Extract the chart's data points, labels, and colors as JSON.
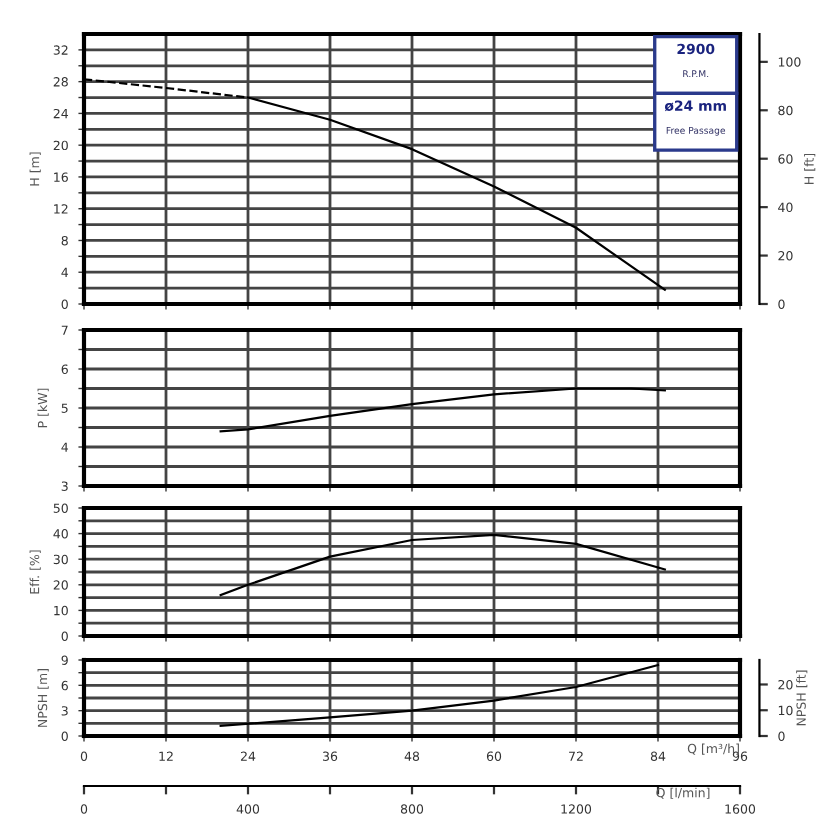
{
  "chart_data": [
    {
      "type": "line",
      "ylabel": "H [m]",
      "y2label": "H [ft]",
      "xlim": [
        0,
        96
      ],
      "xticks": [
        0,
        12,
        24,
        36,
        48,
        60,
        72,
        84,
        96
      ],
      "ylim": [
        0,
        34
      ],
      "yticks": [
        0,
        {
          "value": 2,
          "label": null
        },
        4,
        {
          "value": 6,
          "label": null
        },
        8,
        {
          "value": 10,
          "label": null
        },
        12,
        {
          "value": 14,
          "label": null
        },
        16,
        {
          "value": 18,
          "label": null
        },
        20,
        {
          "value": 22,
          "label": null
        },
        24,
        {
          "value": 26,
          "label": null
        },
        28,
        {
          "value": 30,
          "label": null
        },
        32
      ],
      "y2lim": [
        0,
        111.5
      ],
      "y2ticks": [
        0,
        20,
        40,
        60,
        80,
        100
      ],
      "grid": true,
      "tick_labels": "y",
      "annotations": [
        "2900",
        "R.P.M.",
        "ø24 mm",
        "Free Passage"
      ],
      "series": [
        {
          "color": "#000000",
          "line_style": "dashed",
          "x": [
            0,
            12,
            24
          ],
          "values": [
            28.3,
            27.2,
            26
          ]
        },
        {
          "color": "#000000",
          "line_style": "solid",
          "x": [
            24,
            36,
            48,
            60,
            72,
            78,
            85
          ],
          "values": [
            26,
            23.2,
            19.5,
            14.8,
            9.6,
            6,
            1.8
          ]
        }
      ]
    },
    {
      "type": "line",
      "ylabel": "P [kW]",
      "xlim": [
        0,
        96
      ],
      "xticks": [
        0,
        12,
        24,
        36,
        48,
        60,
        72,
        84,
        96
      ],
      "ylim": [
        3,
        7
      ],
      "yticks": [
        3,
        {
          "value": 3.5,
          "label": null
        },
        4,
        {
          "value": 4.5,
          "label": null
        },
        5,
        {
          "value": 5.5,
          "label": null
        },
        6,
        {
          "value": 6.5,
          "label": null
        },
        7
      ],
      "grid": true,
      "tick_labels": "y",
      "series": [
        {
          "color": "#000000",
          "x": [
            20,
            24,
            36,
            48,
            60,
            72,
            80,
            85
          ],
          "values": [
            4.4,
            4.45,
            4.8,
            5.1,
            5.35,
            5.5,
            5.5,
            5.45
          ]
        }
      ]
    },
    {
      "type": "line",
      "ylabel": "Eff. [%]",
      "xlim": [
        0,
        96
      ],
      "xticks": [
        0,
        12,
        24,
        36,
        48,
        60,
        72,
        84,
        96
      ],
      "ylim": [
        0,
        50
      ],
      "yticks": [
        0,
        {
          "value": 5,
          "label": null
        },
        10,
        {
          "value": 15,
          "label": null
        },
        20,
        {
          "value": 25,
          "label": null
        },
        30,
        {
          "value": 35,
          "label": null
        },
        40,
        {
          "value": 45,
          "label": null
        },
        50
      ],
      "grid": true,
      "tick_labels": "y",
      "series": [
        {
          "color": "#000000",
          "x": [
            20,
            24,
            36,
            48,
            60,
            72,
            85
          ],
          "values": [
            16,
            20,
            31,
            37.5,
            39.5,
            36,
            26
          ]
        }
      ]
    },
    {
      "type": "line",
      "ylabel": "NPSH [m]",
      "y2label": "NPSH [ft]",
      "xlabel": "Q [m³/h]",
      "x2label": "Q [l/min]",
      "xlim": [
        0,
        96
      ],
      "xticks": [
        0,
        12,
        24,
        36,
        48,
        60,
        72,
        84,
        96
      ],
      "ylim": [
        0,
        9
      ],
      "yticks": [
        0,
        {
          "value": 1.5,
          "label": null
        },
        3,
        {
          "value": 4.5,
          "label": null
        },
        6,
        {
          "value": 7.5,
          "label": null
        },
        9
      ],
      "y2lim": [
        0,
        29.5
      ],
      "y2ticks": [
        0,
        10,
        20
      ],
      "x2lim": [
        0,
        1600
      ],
      "x2ticks": [
        0,
        {
          "value": 200,
          "label": null
        },
        400,
        {
          "value": 600,
          "label": null
        },
        800,
        {
          "value": 1000,
          "label": null
        },
        1200,
        {
          "value": 1400,
          "label": null
        },
        1600
      ],
      "grid": true,
      "series": [
        {
          "color": "#000000",
          "x": [
            20,
            36,
            48,
            60,
            72,
            84
          ],
          "values": [
            1.2,
            2.2,
            3,
            4.2,
            5.8,
            8.4
          ]
        }
      ]
    }
  ]
}
